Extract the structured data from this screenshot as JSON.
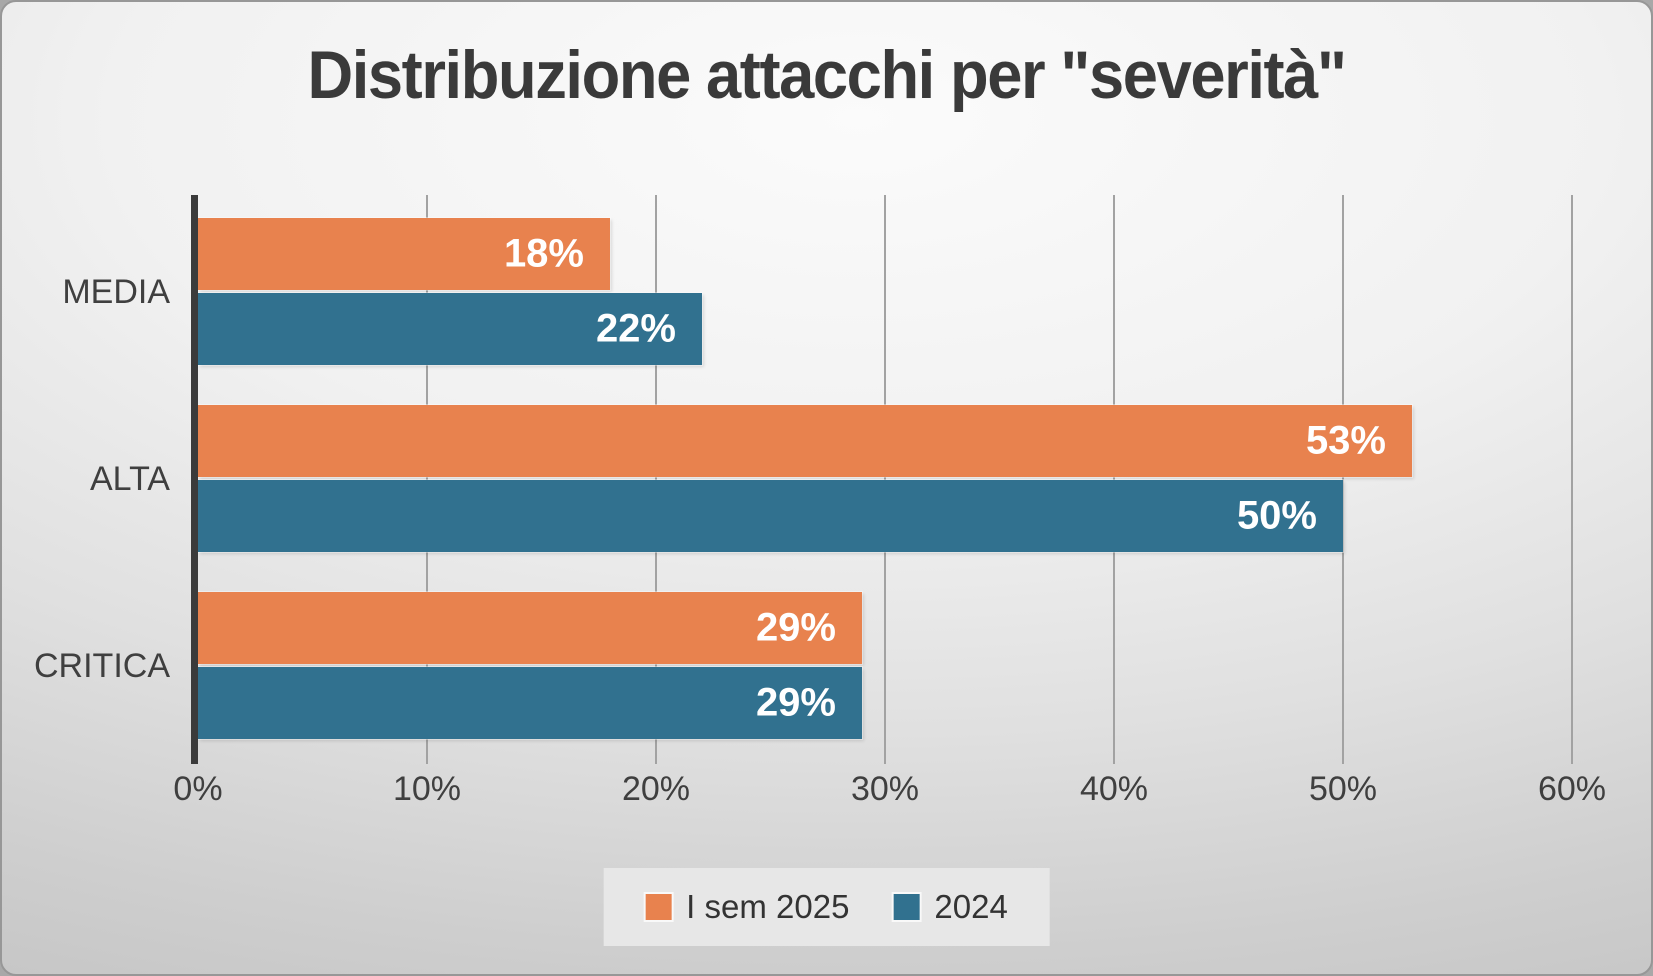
{
  "chart_data": {
    "type": "bar",
    "orientation": "horizontal",
    "title": "Distribuzione attacchi per \"severità\"",
    "categories": [
      "MEDIA",
      "ALTA",
      "CRITICA"
    ],
    "series": [
      {
        "name": "I sem 2025",
        "color": "#E8824E",
        "values": [
          18,
          53,
          29
        ],
        "labels": [
          "18%",
          "53%",
          "29%"
        ]
      },
      {
        "name": "2024",
        "color": "#31718F",
        "values": [
          22,
          50,
          29
        ],
        "labels": [
          "22%",
          "50%",
          "29%"
        ]
      }
    ],
    "value_axis": {
      "min": 0,
      "max": 60,
      "step": 10,
      "tick_labels": [
        "0%",
        "10%",
        "20%",
        "30%",
        "40%",
        "50%",
        "60%"
      ]
    },
    "grid": true,
    "legend_position": "bottom"
  },
  "style": {
    "title_color": "#3A3A3A",
    "axis_text_color": "#3F3F3F",
    "data_label_color": "#FFFFFF",
    "gridline_color": "#A2A2A2",
    "axis_line_color": "#3B3B3B",
    "legend_background": "#E7E7E7"
  }
}
